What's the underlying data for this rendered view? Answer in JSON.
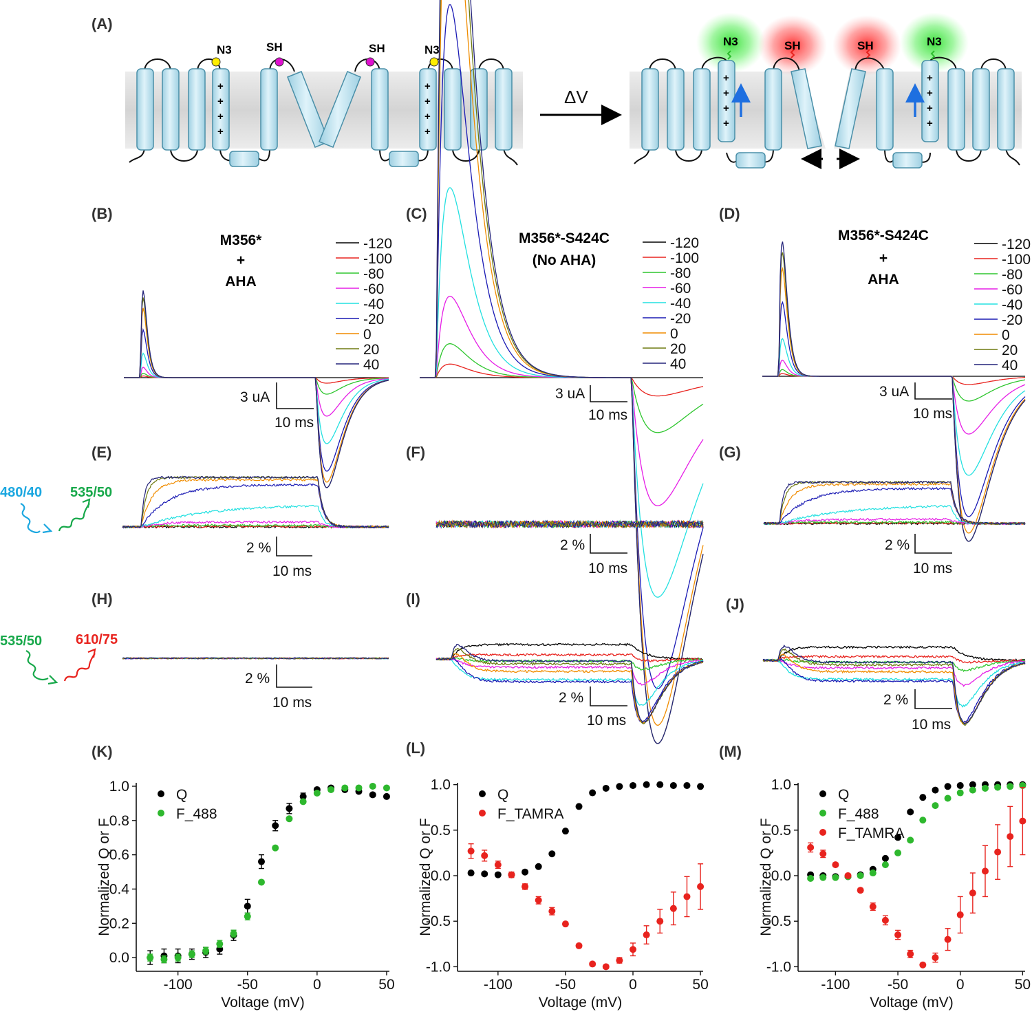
{
  "panels": {
    "A": "(A)",
    "B": "(B)",
    "C": "(C)",
    "D": "(D)",
    "E": "(E)",
    "F": "(F)",
    "G": "(G)",
    "H": "(H)",
    "I": "(I)",
    "J": "(J)",
    "K": "(K)",
    "L": "(L)",
    "M": "(M)"
  },
  "schematic": {
    "delta_v": "ΔV",
    "azide_label": "N3",
    "thiol_label": "SH",
    "charge_symbol": "+",
    "colors": {
      "membrane": "#d9d9d9",
      "helix": "#bfe3f0",
      "helix_stroke": "#4a8fa8",
      "azide_dot": "#ffee00",
      "thiol_dot": "#e010d0",
      "green_glow": "#33dd33",
      "red_glow": "#ff3030",
      "arrow_blue": "#1e6fe0"
    }
  },
  "titles": {
    "B": [
      "M356*",
      "+",
      "AHA"
    ],
    "C": [
      "M356*-S424C",
      "(No AHA)"
    ],
    "D": [
      "M356*-S424C",
      "+",
      "AHA"
    ]
  },
  "voltage_legend": {
    "labels": [
      "-120",
      "-100",
      "-80",
      "-60",
      "-40",
      "-20",
      "0",
      "20",
      "40"
    ],
    "colors": [
      "#000000",
      "#e8231e",
      "#2ec62e",
      "#e61ee6",
      "#22e0e0",
      "#1a1ab4",
      "#f08c00",
      "#6e7a10",
      "#24247a"
    ]
  },
  "scale_bars": {
    "current": "3 uA",
    "percent": "2 %",
    "time": "10 ms"
  },
  "filters": {
    "excitation_488": "480/40",
    "emission_488": "535/50",
    "excitation_tamra": "535/50",
    "emission_tamra": "610/75",
    "colors": {
      "blue": "#1ba7e0",
      "green": "#17a84a",
      "red": "#e8231e"
    }
  },
  "chart_data": [
    {
      "panel": "K",
      "type": "scatter",
      "xlabel": "Voltage (mV)",
      "ylabel": "Normalized Q or F",
      "xlim": [
        -130,
        52
      ],
      "ylim": [
        -0.08,
        1.02
      ],
      "xticks": [
        -100,
        -50,
        0,
        50
      ],
      "yticks": [
        0.0,
        0.2,
        0.4,
        0.6,
        0.8,
        1.0
      ],
      "ytick_labels": [
        "0.0",
        "0.2",
        "0.4",
        "0.6",
        "0.8",
        "1.0"
      ],
      "legend_position": "top-left",
      "series": [
        {
          "name": "Q",
          "color": "#000000",
          "x": [
            -120,
            -110,
            -100,
            -90,
            -80,
            -70,
            -60,
            -50,
            -40,
            -30,
            -20,
            -10,
            0,
            10,
            20,
            30,
            40,
            50
          ],
          "y": [
            0.0,
            0.01,
            0.01,
            0.02,
            0.03,
            0.05,
            0.13,
            0.3,
            0.56,
            0.77,
            0.87,
            0.94,
            0.98,
            0.99,
            0.98,
            0.97,
            0.95,
            0.94
          ],
          "err": [
            0.04,
            0.04,
            0.04,
            0.03,
            0.03,
            0.03,
            0.03,
            0.04,
            0.04,
            0.03,
            0.03,
            0.02,
            0.01,
            0.01,
            0.01,
            0.01,
            0.01,
            0.01
          ]
        },
        {
          "name": "F_488",
          "color": "#2eb82e",
          "x": [
            -120,
            -110,
            -100,
            -90,
            -80,
            -70,
            -60,
            -50,
            -40,
            -30,
            -20,
            -10,
            0,
            10,
            20,
            30,
            40,
            50
          ],
          "y": [
            0.0,
            -0.01,
            0.0,
            0.02,
            0.04,
            0.08,
            0.14,
            0.24,
            0.44,
            0.64,
            0.81,
            0.91,
            0.96,
            0.98,
            0.99,
            0.99,
            1.0,
            0.99
          ],
          "err": [
            0.02,
            0.02,
            0.02,
            0.02,
            0.02,
            0.02,
            0.02,
            0.02,
            0.01,
            0.01,
            0.01,
            0.01,
            0.01,
            0.01,
            0.01,
            0.01,
            0.01,
            0.01
          ]
        }
      ]
    },
    {
      "panel": "L",
      "type": "scatter",
      "xlabel": "Voltage (mV)",
      "ylabel": "Normalized Q or F",
      "xlim": [
        -130,
        52
      ],
      "ylim": [
        -1.05,
        1.02
      ],
      "xticks": [
        -100,
        -50,
        0,
        50
      ],
      "yticks": [
        -1.0,
        -0.5,
        0.0,
        0.5,
        1.0
      ],
      "ytick_labels": [
        "-1.0",
        "-0.5",
        "0.0",
        "0.5",
        "1.0"
      ],
      "legend_position": "top-left",
      "series": [
        {
          "name": "Q",
          "color": "#000000",
          "x": [
            -120,
            -110,
            -100,
            -90,
            -80,
            -70,
            -60,
            -50,
            -40,
            -30,
            -20,
            -10,
            0,
            10,
            20,
            30,
            40,
            50
          ],
          "y": [
            0.03,
            0.02,
            0.01,
            0.01,
            0.04,
            0.1,
            0.24,
            0.49,
            0.76,
            0.91,
            0.96,
            0.98,
            0.99,
            1.0,
            1.0,
            0.99,
            0.99,
            0.98
          ],
          "err": [
            0.01,
            0.01,
            0.01,
            0.01,
            0.01,
            0.01,
            0.01,
            0.01,
            0.01,
            0.01,
            0.01,
            0.01,
            0.01,
            0.01,
            0.01,
            0.01,
            0.01,
            0.01
          ]
        },
        {
          "name": "F_TAMRA",
          "color": "#e8231e",
          "x": [
            -120,
            -110,
            -100,
            -90,
            -80,
            -70,
            -60,
            -50,
            -40,
            -30,
            -20,
            -10,
            0,
            10,
            20,
            30,
            40,
            50
          ],
          "y": [
            0.27,
            0.22,
            0.12,
            0.01,
            -0.12,
            -0.27,
            -0.39,
            -0.53,
            -0.77,
            -0.97,
            -1.0,
            -0.93,
            -0.81,
            -0.65,
            -0.5,
            -0.36,
            -0.23,
            -0.12
          ],
          "err": [
            0.08,
            0.06,
            0.04,
            0.03,
            0.03,
            0.04,
            0.04,
            0.02,
            0.02,
            0.02,
            0.02,
            0.03,
            0.07,
            0.1,
            0.13,
            0.18,
            0.22,
            0.25
          ]
        }
      ]
    },
    {
      "panel": "M",
      "type": "scatter",
      "xlabel": "Voltage (mV)",
      "ylabel": "Normalized Q or F",
      "xlim": [
        -130,
        52
      ],
      "ylim": [
        -1.05,
        1.02
      ],
      "xticks": [
        -100,
        -50,
        0,
        50
      ],
      "yticks": [
        -1.0,
        -0.5,
        0.0,
        0.5,
        1.0
      ],
      "ytick_labels": [
        "-1.0",
        "-0.5",
        "0.0",
        "0.5",
        "1.0"
      ],
      "legend_position": "top-left",
      "series": [
        {
          "name": "Q",
          "color": "#000000",
          "x": [
            -120,
            -110,
            -100,
            -90,
            -80,
            -70,
            -60,
            -50,
            -40,
            -30,
            -20,
            -10,
            0,
            10,
            20,
            30,
            40,
            50
          ],
          "y": [
            0.01,
            0.0,
            -0.01,
            -0.01,
            0.01,
            0.07,
            0.19,
            0.42,
            0.7,
            0.86,
            0.94,
            0.98,
            0.99,
            1.0,
            1.0,
            1.0,
            1.0,
            1.0
          ],
          "err": [
            0.01,
            0.01,
            0.01,
            0.01,
            0.01,
            0.01,
            0.01,
            0.01,
            0.01,
            0.01,
            0.01,
            0.01,
            0.01,
            0.01,
            0.01,
            0.01,
            0.01,
            0.01
          ]
        },
        {
          "name": "F_488",
          "color": "#2eb82e",
          "x": [
            -120,
            -110,
            -100,
            -90,
            -80,
            -70,
            -60,
            -50,
            -40,
            -30,
            -20,
            -10,
            0,
            10,
            20,
            30,
            40,
            50
          ],
          "y": [
            -0.03,
            -0.02,
            -0.02,
            -0.01,
            0.0,
            0.03,
            0.12,
            0.25,
            0.39,
            0.61,
            0.77,
            0.85,
            0.91,
            0.94,
            0.96,
            0.97,
            0.98,
            0.99
          ],
          "err": [
            0.01,
            0.01,
            0.01,
            0.01,
            0.01,
            0.01,
            0.01,
            0.01,
            0.01,
            0.01,
            0.01,
            0.01,
            0.01,
            0.01,
            0.01,
            0.01,
            0.01,
            0.01
          ]
        },
        {
          "name": "F_TAMRA",
          "color": "#e8231e",
          "x": [
            -120,
            -110,
            -100,
            -90,
            -80,
            -70,
            -60,
            -50,
            -40,
            -30,
            -20,
            -10,
            0,
            10,
            20,
            30,
            40,
            50
          ],
          "y": [
            0.31,
            0.24,
            0.12,
            0.0,
            -0.16,
            -0.34,
            -0.49,
            -0.65,
            -0.86,
            -0.98,
            -0.9,
            -0.7,
            -0.43,
            -0.19,
            0.05,
            0.26,
            0.43,
            0.6
          ],
          "err": [
            0.05,
            0.04,
            0.02,
            0.02,
            0.02,
            0.04,
            0.05,
            0.05,
            0.04,
            0.02,
            0.05,
            0.12,
            0.2,
            0.22,
            0.28,
            0.3,
            0.33,
            0.37
          ]
        }
      ]
    }
  ]
}
